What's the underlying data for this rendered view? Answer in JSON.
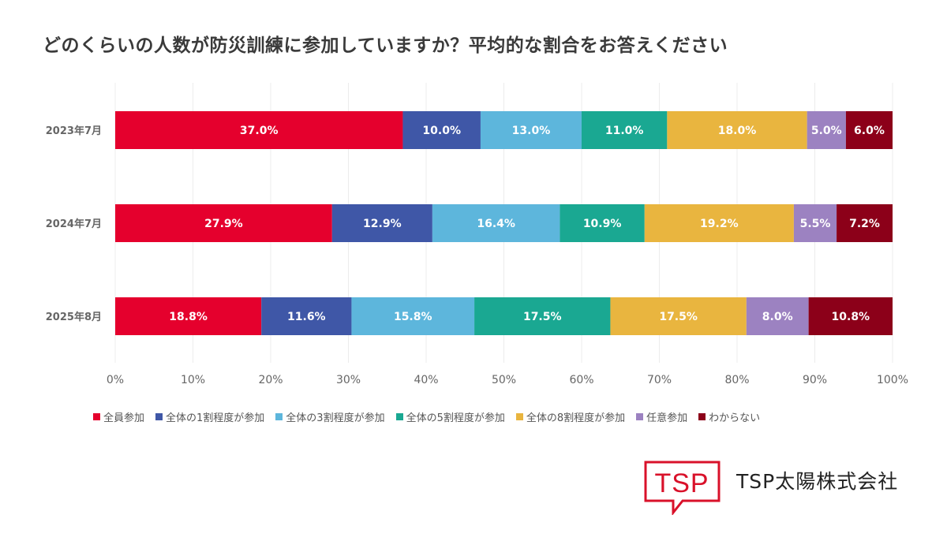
{
  "title": "どのくらいの人数が防災訓練に参加していますか？平均的な割合をお答えください",
  "company": {
    "logo_text": "TSP",
    "name": "TSP太陽株式会社",
    "brand_color": "#d9112a"
  },
  "chart_data": {
    "type": "bar",
    "orientation": "horizontal",
    "stacked": true,
    "percent_stacked": true,
    "title": "どのくらいの人数が防災訓練に参加していますか？平均的な割合をお答えください",
    "categories": [
      "2023年7月",
      "2024年7月",
      "2025年8月"
    ],
    "series": [
      {
        "name": "全員参加",
        "color": "#e5002d",
        "values": [
          37.0,
          27.9,
          18.8
        ],
        "labels": [
          "37.0%",
          "27.9%",
          "18.8%"
        ]
      },
      {
        "name": "全体の1割程度が参加",
        "color": "#3f57a7",
        "values": [
          10.0,
          12.9,
          11.6
        ],
        "labels": [
          "10.0%",
          "12.9%",
          "11.6%"
        ]
      },
      {
        "name": "全体の3割程度が参加",
        "color": "#5db6dc",
        "values": [
          13.0,
          16.4,
          15.8
        ],
        "labels": [
          "13.0%",
          "16.4%",
          "15.8%"
        ]
      },
      {
        "name": "全体の5割程度が参加",
        "color": "#1aa892",
        "values": [
          11.0,
          10.9,
          17.5
        ],
        "labels": [
          "11.0%",
          "10.9%",
          "17.5%"
        ]
      },
      {
        "name": "全体の8割程度が参加",
        "color": "#e9b53f",
        "values": [
          18.0,
          19.2,
          17.5
        ],
        "labels": [
          "18.0%",
          "19.2%",
          "17.5%"
        ]
      },
      {
        "name": "任意参加",
        "color": "#9c82c1",
        "values": [
          5.0,
          5.5,
          8.0
        ],
        "labels": [
          "5.0%",
          "5.5%",
          "8.0%"
        ]
      },
      {
        "name": "わからない",
        "color": "#8c0019",
        "values": [
          6.0,
          7.2,
          10.8
        ],
        "labels": [
          "6.0%",
          "7.2%",
          "10.8%"
        ]
      }
    ],
    "xlim": [
      0,
      100
    ],
    "x_ticks": [
      "0%",
      "10%",
      "20%",
      "30%",
      "40%",
      "50%",
      "60%",
      "70%",
      "80%",
      "90%",
      "100%"
    ],
    "xlabel": "",
    "ylabel": "",
    "grid": true,
    "legend_position": "bottom"
  }
}
